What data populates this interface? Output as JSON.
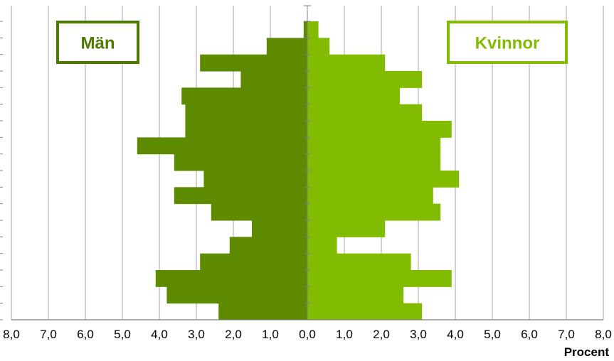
{
  "chart_data": {
    "type": "bar",
    "orientation": "horizontal",
    "subtype": "population-pyramid",
    "xlabel": "Procent",
    "xlim": [
      -8,
      8
    ],
    "x_tick_labels": [
      "8,0",
      "7,0",
      "6,0",
      "5,0",
      "4,0",
      "3,0",
      "2,0",
      "1,0",
      "0,0",
      "1,0",
      "2,0",
      "3,0",
      "4,0",
      "5,0",
      "6,0",
      "7,0",
      "8,0"
    ],
    "grid": true,
    "series": [
      {
        "name": "Män",
        "side": "left",
        "color": "#5e8a00",
        "values_bottom_to_top": [
          2.4,
          3.8,
          4.1,
          2.9,
          2.1,
          1.5,
          2.6,
          3.6,
          2.8,
          3.6,
          4.6,
          3.3,
          3.3,
          3.4,
          1.8,
          2.9,
          1.1,
          0.1
        ]
      },
      {
        "name": "Kvinnor",
        "side": "right",
        "color": "#82bc00",
        "values_bottom_to_top": [
          3.1,
          2.6,
          3.9,
          2.8,
          0.8,
          2.1,
          3.6,
          3.4,
          4.1,
          3.6,
          3.6,
          3.9,
          3.1,
          2.5,
          3.1,
          2.1,
          0.6,
          0.3
        ]
      }
    ],
    "legend": [
      {
        "label": "Män",
        "placement": "top-left",
        "color": "#4f7a00"
      },
      {
        "label": "Kvinnor",
        "placement": "top-right",
        "color": "#82bc00"
      }
    ]
  }
}
